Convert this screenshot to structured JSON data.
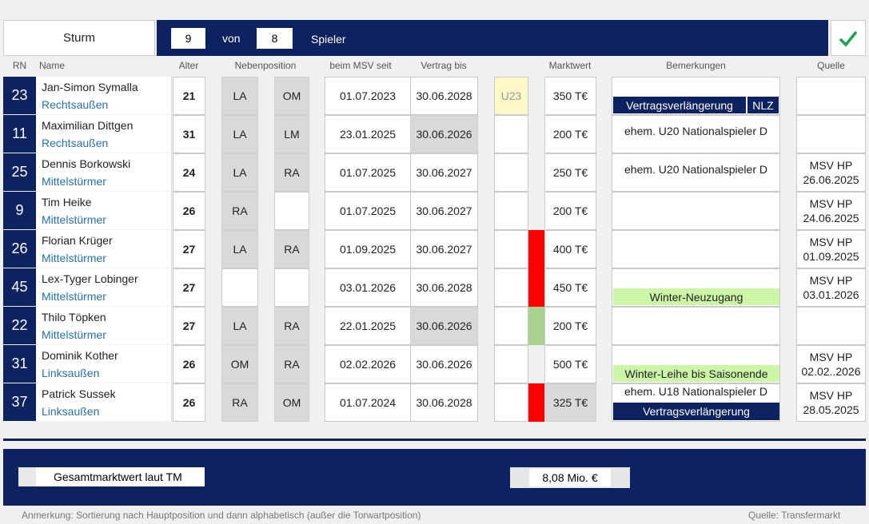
{
  "header": {
    "group": "Sturm",
    "count": "9",
    "von": "von",
    "total": "8",
    "spieler": "Spieler",
    "check_icon": "checkmark-icon"
  },
  "columns": {
    "rn": "RN",
    "name": "Name",
    "alter": "Alter",
    "nebenposition": "Nebenposition",
    "seit": "beim MSV seit",
    "vertrag": "Vertrag bis",
    "marktwert": "Marktwert",
    "bemerkungen": "Bemerkungen",
    "quelle": "Quelle"
  },
  "players": [
    {
      "rn": "23",
      "name": "Jan-Simon Symalla",
      "pos": "Rechtsaußen",
      "age": "21",
      "n1": "LA",
      "n2": "OM",
      "since": "01.07.2023",
      "until": "30.06.2028",
      "u23": "U23",
      "mw": "350 T€",
      "note": "",
      "tag1": "Vertragsverlängerung",
      "tag2": "NLZ",
      "src1": "",
      "src2": ""
    },
    {
      "rn": "11",
      "name": "Maximilian Dittgen",
      "pos": "Rechtsaußen",
      "age": "31",
      "n1": "LA",
      "n2": "LM",
      "since": "23.01.2025",
      "until": "30.06.2026",
      "mw": "200 T€",
      "note": "ehem. U20 Nationalspieler D",
      "src1": "",
      "src2": ""
    },
    {
      "rn": "25",
      "name": "Dennis Borkowski",
      "pos": "Mittelstürmer",
      "age": "24",
      "n1": "LA",
      "n2": "RA",
      "since": "01.07.2025",
      "until": "30.06.2027",
      "mw": "250 T€",
      "note": "ehem. U20 Nationalspieler D",
      "src1": "MSV HP",
      "src2": "26.06.2025"
    },
    {
      "rn": "9",
      "name": "Tim Heike",
      "pos": "Mittelstürmer",
      "age": "26",
      "n1": "RA",
      "n2": "",
      "since": "01.07.2025",
      "until": "30.06.2027",
      "mw": "200 T€",
      "note": "",
      "src1": "MSV HP",
      "src2": "24.06.2025"
    },
    {
      "rn": "26",
      "name": "Florian Krüger",
      "pos": "Mittelstürmer",
      "age": "27",
      "n1": "LA",
      "n2": "RA",
      "since": "01.09.2025",
      "until": "30.06.2027",
      "mw": "400 T€",
      "note": "",
      "src1": "MSV HP",
      "src2": "01.09.2025"
    },
    {
      "rn": "45",
      "name": "Lex-Tyger Lobinger",
      "pos": "Mittelstürmer",
      "age": "27",
      "n1": "",
      "n2": "",
      "since": "03.01.2026",
      "until": "30.06.2028",
      "mw": "450 T€",
      "note": "",
      "green": "Winter-Neuzugang",
      "src1": "MSV HP",
      "src2": "03.01.2026"
    },
    {
      "rn": "22",
      "name": "Thilo Töpken",
      "pos": "Mittelstürmer",
      "age": "27",
      "n1": "LA",
      "n2": "RA",
      "since": "22.01.2025",
      "until": "30.06.2026",
      "mw": "200 T€",
      "note": "",
      "src1": "",
      "src2": ""
    },
    {
      "rn": "31",
      "name": "Dominik Kother",
      "pos": "Linksaußen",
      "age": "26",
      "n1": "OM",
      "n2": "RA",
      "since": "02.02.2026",
      "until": "30.06.2026",
      "mw": "500 T€",
      "note": "",
      "green": "Winter-Leihe bis Saisonende",
      "src1": "MSV HP",
      "src2": "02.02..2026"
    },
    {
      "rn": "37",
      "name": "Patrick Sussek",
      "pos": "Linksaußen",
      "age": "26",
      "n1": "RA",
      "n2": "OM",
      "since": "01.07.2024",
      "until": "30.06.2028",
      "mw": "325 T€",
      "note": "ehem. U18 Nationalspieler D",
      "tag1": "Vertragsverlängerung",
      "src1": "MSV HP",
      "src2": "28.05.2025"
    }
  ],
  "footer": {
    "label": "Gesamtmarktwert laut TM",
    "value": "8,08 Mio. €",
    "note": "Anmerkung: Sortierung nach Hauptposition und dann alphabetisch (außer die Torwartposition)",
    "source": "Quelle: Transfermarkt"
  }
}
